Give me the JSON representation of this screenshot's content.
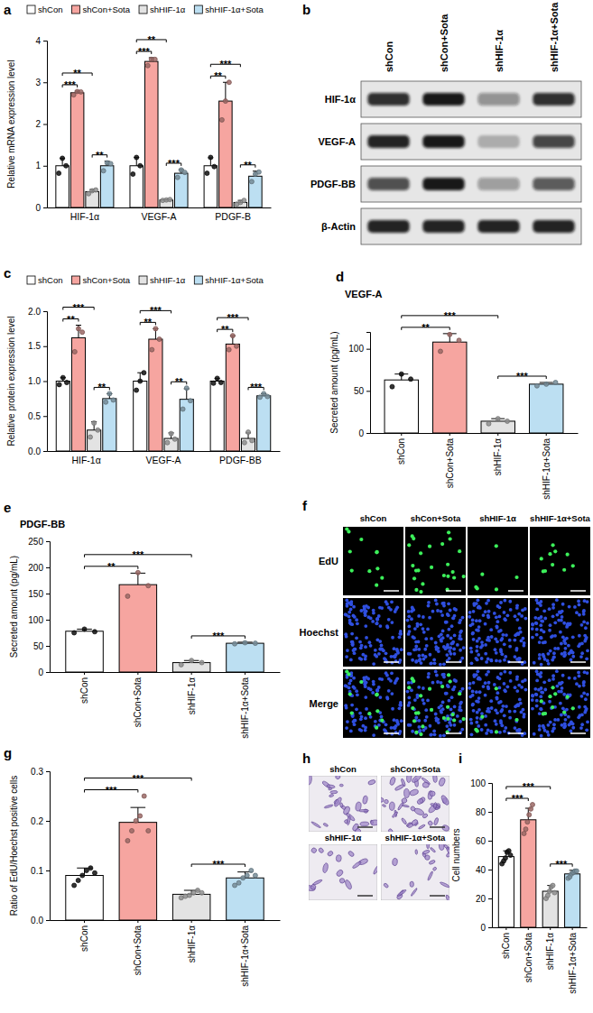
{
  "chart_data": [
    {
      "panel": "a",
      "type": "bar",
      "ylabel": "Relative mRNA expression level",
      "categories": [
        "HIF-1α",
        "VEGF-A",
        "PDGF-B"
      ],
      "series": [
        {
          "name": "shCon",
          "color": "#ffffff",
          "values": [
            1.0,
            1.0,
            1.0
          ],
          "errors": [
            0.18,
            0.2,
            0.19
          ],
          "points": [
            [
              0.82,
              1.18,
              1.0
            ],
            [
              0.8,
              1.2,
              1.0
            ],
            [
              0.82,
              1.2,
              0.98
            ]
          ]
        },
        {
          "name": "shCon+Sota",
          "color": "#f6a5a0",
          "values": [
            2.75,
            3.5,
            2.55
          ],
          "errors": [
            0.04,
            0.09,
            0.45
          ],
          "points": [
            [
              2.7,
              2.78,
              2.77
            ],
            [
              3.4,
              3.55,
              3.55
            ],
            [
              2.1,
              2.55,
              3.0
            ]
          ]
        },
        {
          "name": "shHIF-1α",
          "color": "#e3e3e3",
          "values": [
            0.38,
            0.18,
            0.12
          ],
          "errors": [
            0.05,
            0.01,
            0.05
          ],
          "points": [
            [
              0.33,
              0.4,
              0.42
            ],
            [
              0.17,
              0.18,
              0.19
            ],
            [
              0.08,
              0.12,
              0.17
            ]
          ]
        },
        {
          "name": "shHIF-1α+Sota",
          "color": "#bcdff2",
          "values": [
            1.0,
            0.82,
            0.75
          ],
          "errors": [
            0.11,
            0.09,
            0.12
          ],
          "points": [
            [
              0.88,
              1.07,
              1.05
            ],
            [
              0.72,
              0.9,
              0.84
            ],
            [
              0.62,
              0.8,
              0.85
            ]
          ]
        }
      ],
      "ylim": [
        0,
        4
      ],
      "yticks": [
        0,
        1,
        2,
        3,
        4
      ],
      "legend": "top",
      "annotations": [
        {
          "category": 0,
          "from": 0,
          "to": 1,
          "label": "***"
        },
        {
          "category": 0,
          "from": 2,
          "to": 3,
          "label": "**"
        },
        {
          "category": 0,
          "from": 0,
          "to": 2,
          "label": "**"
        },
        {
          "category": 1,
          "from": 0,
          "to": 1,
          "label": "***"
        },
        {
          "category": 1,
          "from": 2,
          "to": 3,
          "label": "***"
        },
        {
          "category": 1,
          "from": 0,
          "to": 2,
          "label": "**"
        },
        {
          "category": 2,
          "from": 0,
          "to": 1,
          "label": "**"
        },
        {
          "category": 2,
          "from": 2,
          "to": 3,
          "label": "**"
        },
        {
          "category": 2,
          "from": 0,
          "to": 2,
          "label": "***"
        }
      ]
    },
    {
      "panel": "c",
      "type": "bar",
      "ylabel": "Relative protein expression level",
      "categories": [
        "HIF-1α",
        "VEGF-A",
        "PDGF-BB"
      ],
      "series": [
        {
          "name": "shCon",
          "color": "#ffffff",
          "values": [
            1.0,
            1.0,
            1.0
          ],
          "errors": [
            0.05,
            0.12,
            0.04
          ],
          "points": [
            [
              0.95,
              1.05,
              0.98
            ],
            [
              0.87,
              1.0,
              1.12
            ],
            [
              0.97,
              1.04,
              0.98
            ]
          ]
        },
        {
          "name": "shCon+Sota",
          "color": "#f6a5a0",
          "values": [
            1.62,
            1.6,
            1.53
          ],
          "errors": [
            0.18,
            0.15,
            0.12
          ],
          "points": [
            [
              1.42,
              1.75,
              1.7
            ],
            [
              1.45,
              1.75,
              1.6
            ],
            [
              1.45,
              1.65,
              1.5
            ]
          ]
        },
        {
          "name": "shHIF-1α",
          "color": "#e3e3e3",
          "values": [
            0.3,
            0.18,
            0.18
          ],
          "errors": [
            0.12,
            0.08,
            0.08
          ],
          "points": [
            [
              0.2,
              0.4,
              0.3
            ],
            [
              0.12,
              0.25,
              0.17
            ],
            [
              0.12,
              0.27,
              0.15
            ]
          ]
        },
        {
          "name": "shHIF-1α+Sota",
          "color": "#bcdff2",
          "values": [
            0.75,
            0.74,
            0.79
          ],
          "errors": [
            0.07,
            0.15,
            0.03
          ],
          "points": [
            [
              0.7,
              0.82,
              0.73
            ],
            [
              0.6,
              0.9,
              0.72
            ],
            [
              0.77,
              0.82,
              0.78
            ]
          ]
        }
      ],
      "ylim": [
        0,
        2
      ],
      "yticks": [
        {
          "value": 0,
          "label": "0.0"
        },
        0.5,
        {
          "value": 1,
          "label": "1.0"
        },
        1.5,
        {
          "value": 2,
          "label": "2.0"
        }
      ],
      "legend": "top",
      "annotations": [
        {
          "category": 0,
          "from": 0,
          "to": 1,
          "label": "**"
        },
        {
          "category": 0,
          "from": 2,
          "to": 3,
          "label": "**"
        },
        {
          "category": 0,
          "from": 0,
          "to": 2,
          "label": "***"
        },
        {
          "category": 1,
          "from": 0,
          "to": 1,
          "label": "**"
        },
        {
          "category": 1,
          "from": 2,
          "to": 3,
          "label": "**"
        },
        {
          "category": 1,
          "from": 0,
          "to": 2,
          "label": "***"
        },
        {
          "category": 2,
          "from": 0,
          "to": 1,
          "label": "**"
        },
        {
          "category": 2,
          "from": 2,
          "to": 3,
          "label": "***"
        },
        {
          "category": 2,
          "from": 0,
          "to": 2,
          "label": "***"
        }
      ]
    },
    {
      "panel": "d",
      "type": "bar",
      "title": "VEGF-A",
      "ylabel": "Secreted amount (pg/mL)",
      "categories": [
        "shCon",
        "shCon+Sota",
        "shHIF-1α",
        "shHIF-1α+Sota"
      ],
      "values": [
        63,
        108,
        14,
        58
      ],
      "errors": [
        7,
        10,
        3,
        2
      ],
      "points": [
        [
          55,
          70,
          64
        ],
        [
          97,
          117,
          110
        ],
        [
          11,
          17,
          14
        ],
        [
          56,
          58,
          60
        ]
      ],
      "colors": [
        "#ffffff",
        "#f6a5a0",
        "#e3e3e3",
        "#bcdff2"
      ],
      "ylim": [
        0,
        120
      ],
      "yticks": [
        0,
        50,
        100
      ],
      "annotations": [
        {
          "from": 0,
          "to": 1,
          "label": "**"
        },
        {
          "from": 2,
          "to": 3,
          "label": "***"
        },
        {
          "from": 0,
          "to": 2,
          "label": "***"
        }
      ]
    },
    {
      "panel": "e",
      "type": "bar",
      "title": "PDGF-BB",
      "ylabel": "Secreted amount (pg/mL)",
      "categories": [
        "shCon",
        "shCon+Sota",
        "shHIF-1α",
        "shHIF-1α+Sota"
      ],
      "values": [
        78,
        167,
        18,
        55
      ],
      "errors": [
        4,
        22,
        4,
        2
      ],
      "points": [
        [
          75,
          82,
          77
        ],
        [
          145,
          190,
          165
        ],
        [
          14,
          22,
          18
        ],
        [
          54,
          56,
          55
        ]
      ],
      "colors": [
        "#ffffff",
        "#f6a5a0",
        "#e3e3e3",
        "#bcdff2"
      ],
      "ylim": [
        0,
        250
      ],
      "yticks": [
        0,
        50,
        100,
        150,
        200,
        250
      ],
      "annotations": [
        {
          "from": 0,
          "to": 1,
          "label": "**"
        },
        {
          "from": 2,
          "to": 3,
          "label": "***"
        },
        {
          "from": 0,
          "to": 2,
          "label": "***"
        }
      ]
    },
    {
      "panel": "g",
      "type": "bar",
      "ylabel": "Ratio of EdU/Hoechst positive cells",
      "categories": [
        "shCon",
        "shCon+Sota",
        "shHIF-1α",
        "shHIF-1α+Sota"
      ],
      "values": [
        0.09,
        0.197,
        0.052,
        0.085
      ],
      "errors": [
        0.015,
        0.03,
        0.008,
        0.012
      ],
      "points": [
        [
          0.07,
          0.08,
          0.09,
          0.1,
          0.105,
          0.095
        ],
        [
          0.16,
          0.18,
          0.2,
          0.21,
          0.25,
          0.18
        ],
        [
          0.045,
          0.048,
          0.05,
          0.055,
          0.06,
          0.055
        ],
        [
          0.07,
          0.075,
          0.085,
          0.09,
          0.1,
          0.09
        ]
      ],
      "colors": [
        "#ffffff",
        "#f6a5a0",
        "#e3e3e3",
        "#bcdff2"
      ],
      "ylim": [
        0,
        0.3
      ],
      "yticks": [
        {
          "value": 0,
          "label": "0.0"
        },
        0.1,
        0.2,
        0.3
      ],
      "annotations": [
        {
          "from": 0,
          "to": 1,
          "label": "***"
        },
        {
          "from": 2,
          "to": 3,
          "label": "***"
        },
        {
          "from": 0,
          "to": 2,
          "label": "***"
        }
      ]
    },
    {
      "panel": "i",
      "type": "bar",
      "ylabel": "Cell numbers",
      "categories": [
        "shCon",
        "shCon+Sota",
        "shHIF-1α",
        "shHIF-1α+Sota"
      ],
      "values": [
        49,
        74.5,
        25,
        37
      ],
      "errors": [
        4,
        8,
        4,
        2.5
      ],
      "points": [
        [
          44,
          46,
          48,
          52,
          53,
          50
        ],
        [
          65,
          68,
          73,
          78,
          82,
          85
        ],
        [
          20,
          22,
          25,
          28,
          29,
          24
        ],
        [
          34,
          35,
          37,
          38,
          39,
          39
        ]
      ],
      "colors": [
        "#ffffff",
        "#f6a5a0",
        "#e3e3e3",
        "#bcdff2"
      ],
      "ylim": [
        0,
        100
      ],
      "yticks": [
        0,
        20,
        40,
        60,
        80,
        100
      ],
      "annotations": [
        {
          "from": 0,
          "to": 1,
          "label": "***"
        },
        {
          "from": 2,
          "to": 3,
          "label": "***"
        },
        {
          "from": 0,
          "to": 2,
          "label": "***"
        }
      ]
    }
  ],
  "blot": {
    "panel": "b",
    "lanes": [
      "shCon",
      "shCon+Sota",
      "shHIF-1α",
      "shHIF-1α+Sota"
    ],
    "rows": [
      "HIF-1α",
      "VEGF-A",
      "PDGF-BB",
      "β-Actin"
    ],
    "intensity": [
      [
        0.85,
        0.95,
        0.4,
        0.85
      ],
      [
        0.9,
        0.95,
        0.25,
        0.75
      ],
      [
        0.7,
        0.95,
        0.35,
        0.65
      ],
      [
        0.9,
        0.9,
        0.9,
        0.9
      ]
    ]
  },
  "edu": {
    "panel": "f",
    "columns": [
      "shCon",
      "shCon+Sota",
      "shHIF-1α",
      "shHIF-1α+Sota"
    ],
    "rows": [
      "EdU",
      "Hoechst",
      "Merge"
    ]
  },
  "transwell": {
    "panel": "h",
    "columns": [
      "shCon",
      "shCon+Sota",
      "shHIF-1α",
      "shHIF-1α+Sota"
    ]
  }
}
